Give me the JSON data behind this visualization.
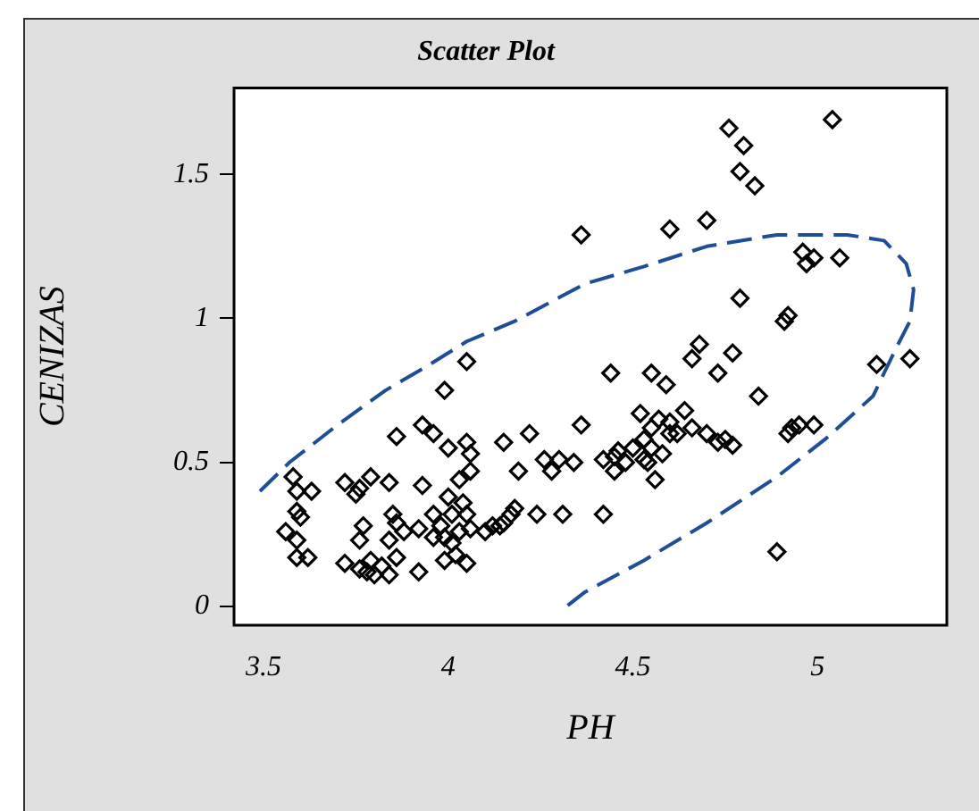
{
  "chart_data": {
    "type": "scatter",
    "title": "Scatter Plot",
    "xlabel": "PH",
    "ylabel": "CENIZAS",
    "xlim": [
      3.42,
      5.35
    ],
    "ylim": [
      -0.065,
      1.8
    ],
    "xticks": [
      3.5,
      4,
      4.5,
      5
    ],
    "yticks": [
      0,
      0.5,
      1,
      1.5
    ],
    "grid": false,
    "legend": false,
    "series": [
      {
        "color": "#000000",
        "marker": "diamond",
        "x": [
          4.36,
          4.76,
          4.8,
          4.79,
          4.83,
          5.04,
          4.7,
          4.6,
          4.96,
          4.97,
          4.99,
          5.06,
          4.79,
          4.91,
          4.92,
          5.16,
          5.25,
          4.84,
          4.44,
          4.55,
          4.59,
          4.66,
          4.68,
          4.77,
          4.73,
          4.92,
          4.95,
          4.99,
          4.93,
          4.42,
          4.89,
          4.56,
          4.54,
          4.05,
          3.99,
          3.86,
          3.93,
          3.96,
          4.05,
          4.06,
          4.0,
          4.15,
          4.22,
          4.19,
          4.06,
          4.03,
          3.93,
          4.26,
          4.28,
          4.3,
          4.34,
          4.36,
          3.58,
          3.59,
          3.63,
          3.59,
          3.6,
          3.56,
          3.59,
          3.59,
          3.62,
          3.72,
          3.75,
          3.76,
          3.79,
          3.84,
          3.77,
          3.76,
          3.85,
          3.86,
          3.84,
          3.88,
          3.86,
          3.72,
          3.76,
          3.78,
          3.8,
          3.82,
          3.84,
          3.92,
          3.79,
          3.92,
          3.96,
          3.98,
          4.0,
          4.01,
          4.03,
          3.99,
          4.01,
          4.02,
          3.99,
          4.05,
          4.05,
          4.06,
          3.96,
          4.04,
          4.12,
          4.14,
          4.15,
          4.17,
          4.18,
          4.24,
          4.31,
          4.1,
          4.45,
          4.46,
          4.48,
          4.42,
          4.45,
          4.5,
          4.53,
          4.52,
          4.55,
          4.57,
          4.6,
          4.62,
          4.64,
          4.66,
          4.7,
          4.73,
          4.75,
          4.77,
          4.53,
          4.55,
          4.58,
          4.6
        ],
        "values": [
          1.29,
          1.66,
          1.6,
          1.51,
          1.46,
          1.69,
          1.34,
          1.31,
          1.23,
          1.19,
          1.21,
          1.21,
          1.07,
          0.99,
          1.01,
          0.84,
          0.86,
          0.73,
          0.81,
          0.81,
          0.77,
          0.86,
          0.91,
          0.88,
          0.81,
          0.6,
          0.63,
          0.63,
          0.62,
          0.32,
          0.19,
          0.44,
          0.5,
          0.85,
          0.75,
          0.59,
          0.63,
          0.6,
          0.57,
          0.53,
          0.55,
          0.57,
          0.6,
          0.47,
          0.47,
          0.44,
          0.42,
          0.51,
          0.47,
          0.51,
          0.5,
          0.63,
          0.45,
          0.4,
          0.4,
          0.33,
          0.31,
          0.26,
          0.23,
          0.17,
          0.17,
          0.43,
          0.39,
          0.41,
          0.45,
          0.43,
          0.28,
          0.23,
          0.32,
          0.29,
          0.23,
          0.26,
          0.17,
          0.15,
          0.13,
          0.12,
          0.11,
          0.14,
          0.11,
          0.12,
          0.16,
          0.27,
          0.32,
          0.28,
          0.38,
          0.32,
          0.26,
          0.24,
          0.22,
          0.18,
          0.16,
          0.15,
          0.32,
          0.27,
          0.24,
          0.36,
          0.28,
          0.28,
          0.29,
          0.32,
          0.34,
          0.32,
          0.32,
          0.26,
          0.52,
          0.54,
          0.5,
          0.51,
          0.47,
          0.55,
          0.51,
          0.67,
          0.62,
          0.65,
          0.64,
          0.6,
          0.68,
          0.62,
          0.6,
          0.57,
          0.58,
          0.56,
          0.58,
          0.55,
          0.53,
          0.6
        ]
      },
      {
        "type": "line",
        "color": "#1f4e96",
        "line_style": "dashed",
        "marker": "none",
        "x": [
          3.49,
          3.57,
          3.7,
          3.83,
          3.95,
          4.05,
          4.18,
          4.37,
          4.53,
          4.7,
          4.89,
          5.08,
          5.18,
          5.24,
          5.26,
          5.25,
          5.21,
          5.15,
          5.02,
          4.89,
          4.7,
          4.53,
          4.37,
          4.32
        ],
        "values": [
          0.4,
          0.5,
          0.63,
          0.75,
          0.84,
          0.92,
          0.99,
          1.12,
          1.18,
          1.25,
          1.29,
          1.29,
          1.27,
          1.19,
          1.1,
          0.99,
          0.89,
          0.73,
          0.58,
          0.45,
          0.29,
          0.16,
          0.05,
          0.0
        ]
      }
    ]
  }
}
